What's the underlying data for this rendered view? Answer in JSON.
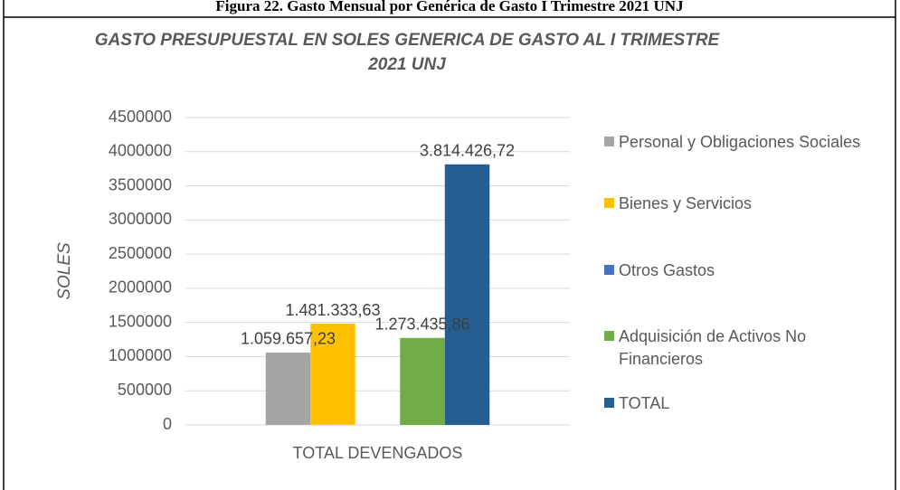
{
  "caption": "Figura 22. Gasto Mensual por Genérica de Gasto I Trimestre 2021 UNJ",
  "chart_data": {
    "type": "bar",
    "title": "GASTO PRESUPUESTAL EN SOLES GENERICA DE GASTO AL I TRIMESTRE 2021 UNJ",
    "y_label": "SOLES",
    "categories": [
      "TOTAL DEVENGADOS"
    ],
    "series": [
      {
        "name": "Personal y Obligaciones Sociales",
        "color": "#a5a5a5",
        "values": [
          1059657.23
        ],
        "value_labels": [
          "1.059.657,23"
        ]
      },
      {
        "name": "Bienes y Servicios",
        "color": "#ffc000",
        "values": [
          1481333.63
        ],
        "value_labels": [
          "1.481.333,63"
        ]
      },
      {
        "name": "Otros Gastos",
        "color": "#4472c4",
        "values": [
          0
        ]
      },
      {
        "name": "Adquisición de Activos No Financieros",
        "color": "#70ad47",
        "values": [
          1273435.86
        ],
        "value_labels": [
          "1.273.435,86"
        ]
      },
      {
        "name": "TOTAL",
        "color": "#255e91",
        "values": [
          3814426.72
        ],
        "value_labels": [
          "3.814.426,72"
        ]
      }
    ],
    "ylim": [
      0,
      4500000
    ],
    "yticks": [
      0,
      500000,
      1000000,
      1500000,
      2000000,
      2500000,
      3000000,
      3500000,
      4000000,
      4500000
    ],
    "grid": true,
    "legend": "right"
  }
}
